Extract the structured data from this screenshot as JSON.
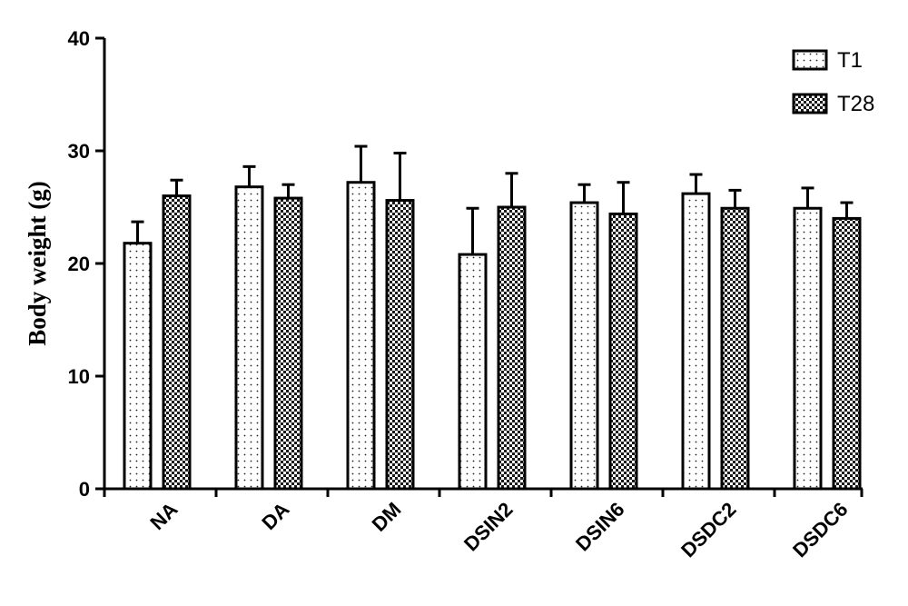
{
  "chart_data": {
    "type": "bar",
    "title": "",
    "xlabel": "",
    "ylabel": "Body weight (g)",
    "ylim": [
      0,
      40
    ],
    "yticks": [
      0,
      10,
      20,
      30,
      40
    ],
    "grid": false,
    "legend": "top-right",
    "categories": [
      "NA",
      "DA",
      "DM",
      "DSIN2",
      "DSIN6",
      "DSDC2",
      "DSDC6"
    ],
    "series": [
      {
        "name": "T1",
        "pattern": "dots",
        "fill": "#ffffff",
        "values": [
          21.8,
          26.8,
          27.2,
          20.8,
          25.4,
          26.2,
          24.9
        ],
        "errors": [
          1.9,
          1.8,
          3.2,
          4.1,
          1.6,
          1.7,
          1.8
        ]
      },
      {
        "name": "T28",
        "pattern": "checker",
        "fill": "#ffffff",
        "values": [
          26.0,
          25.8,
          25.6,
          25.0,
          24.4,
          24.9,
          24.0
        ],
        "errors": [
          1.4,
          1.2,
          4.2,
          3.0,
          2.8,
          1.6,
          1.4
        ]
      }
    ]
  }
}
